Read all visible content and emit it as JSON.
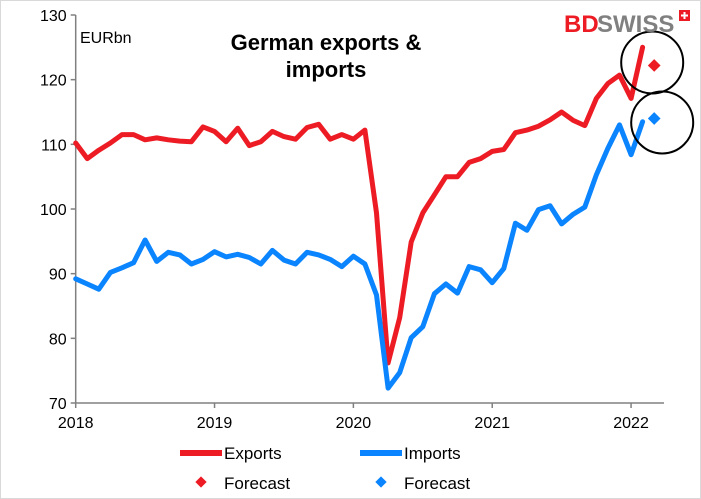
{
  "chart_data": {
    "type": "line",
    "title_lines": [
      "German exports &",
      "imports"
    ],
    "ylabel": "EURbn",
    "ylim": [
      70,
      130
    ],
    "yticks": [
      70,
      80,
      90,
      100,
      110,
      120,
      130
    ],
    "xticks": [
      "2018",
      "2019",
      "2020",
      "2021",
      "2022"
    ],
    "x_start": "2018-01",
    "x_frequency": "monthly",
    "series": [
      {
        "name": "Exports",
        "color": "#ed1c24",
        "values": [
          110.2,
          107.8,
          109.1,
          110.2,
          111.5,
          111.5,
          110.7,
          111.0,
          110.7,
          110.5,
          110.4,
          112.7,
          112.0,
          110.4,
          112.5,
          109.8,
          110.4,
          112.0,
          111.2,
          110.8,
          112.6,
          113.1,
          110.8,
          111.5,
          110.8,
          112.2,
          99.4,
          76.2,
          83.2,
          94.9,
          99.4,
          102.2,
          105.0,
          105.0,
          107.2,
          107.8,
          108.9,
          109.2,
          111.8,
          112.2,
          112.8,
          113.8,
          115.0,
          113.7,
          112.9,
          117.1,
          119.4,
          120.7,
          117.1,
          125.0
        ]
      },
      {
        "name": "Imports",
        "color": "#0a84ff",
        "values": [
          89.2,
          88.4,
          87.6,
          90.2,
          90.9,
          91.7,
          95.2,
          91.9,
          93.3,
          92.9,
          91.5,
          92.2,
          93.4,
          92.6,
          93.0,
          92.5,
          91.5,
          93.6,
          92.1,
          91.5,
          93.3,
          92.9,
          92.2,
          91.1,
          92.7,
          91.5,
          86.7,
          72.3,
          74.7,
          80.1,
          81.8,
          86.9,
          88.4,
          87.0,
          91.1,
          90.6,
          88.6,
          90.8,
          97.8,
          96.7,
          99.9,
          100.5,
          97.7,
          99.2,
          100.3,
          105.3,
          109.4,
          113.0,
          108.4,
          113.5
        ]
      }
    ],
    "forecasts": [
      {
        "name": "Forecast",
        "series": "Exports",
        "x": "2022-03",
        "value": 122.2,
        "color": "#ed1c24"
      },
      {
        "name": "Forecast",
        "series": "Imports",
        "x": "2022-03",
        "value": 114.0,
        "color": "#0a84ff"
      }
    ],
    "annotations": [
      "circle around exports forecast",
      "circle around imports forecast"
    ],
    "grid": false,
    "legend_placement": "bottom"
  },
  "logo": {
    "text_bd": "BD",
    "text_swiss": "SWISS",
    "color_bd": "#ed1c24",
    "color_swiss": "#808080"
  }
}
